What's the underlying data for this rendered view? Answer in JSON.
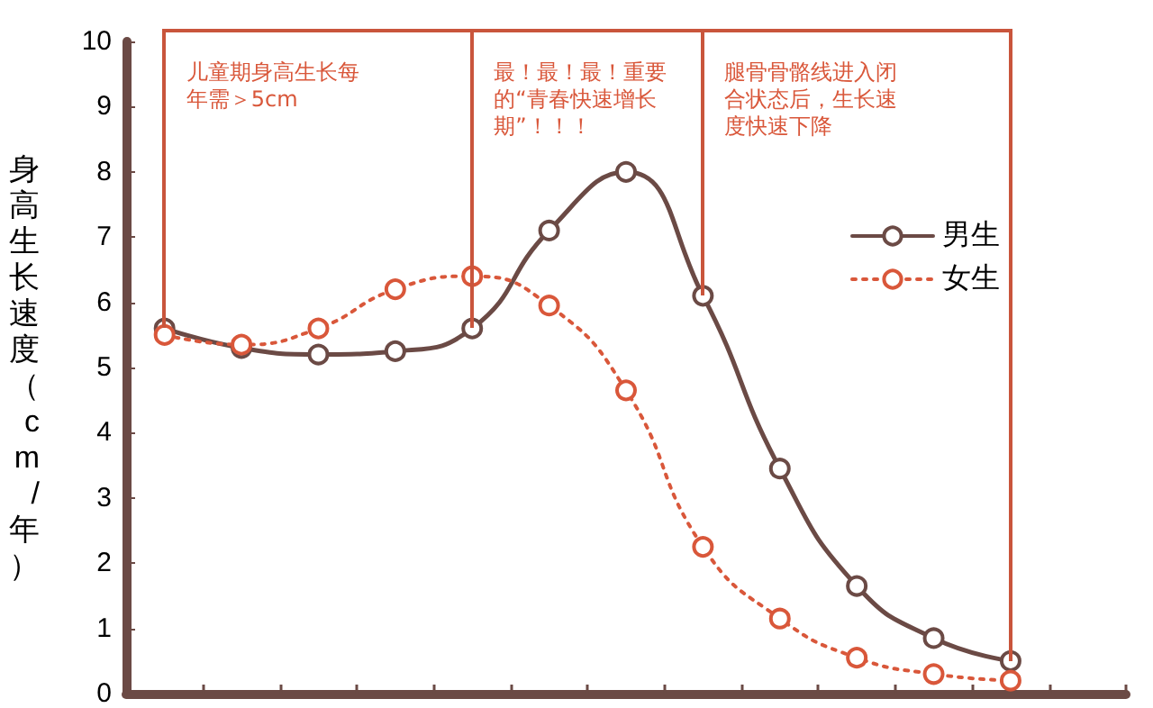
{
  "chart_data": {
    "type": "line",
    "ylabel": "身高生长速度（cm/年）",
    "categories": [
      null,
      null,
      null,
      null,
      null,
      null,
      null,
      null,
      null,
      null,
      null,
      null,
      null
    ],
    "series": [
      {
        "name": "男生",
        "color": "#6b4a45",
        "line_style": "solid",
        "values": [
          5.6,
          5.3,
          5.2,
          5.25,
          5.6,
          7.1,
          8.0,
          6.1,
          3.45,
          1.65,
          0.85,
          0.5,
          null
        ]
      },
      {
        "name": "女生",
        "color": "#d9573a",
        "line_style": "dotted",
        "values": [
          5.5,
          5.35,
          5.6,
          6.2,
          6.4,
          5.95,
          4.65,
          2.25,
          1.15,
          0.55,
          0.3,
          0.2,
          null
        ]
      }
    ],
    "annotations": [
      "儿童期身高生长每年需＞5cm",
      "最！最！最！重要的“青春快速增长期”！！！",
      "腿骨骨骼线进入闭合状态后，生长速度快速下降"
    ],
    "ylim": [
      0,
      10
    ],
    "yticks": [
      0,
      1,
      2,
      3,
      4,
      5,
      6,
      7,
      8,
      9,
      10
    ],
    "tick_labels": "y",
    "marker": "circle",
    "legend": "top right",
    "grid": false
  }
}
